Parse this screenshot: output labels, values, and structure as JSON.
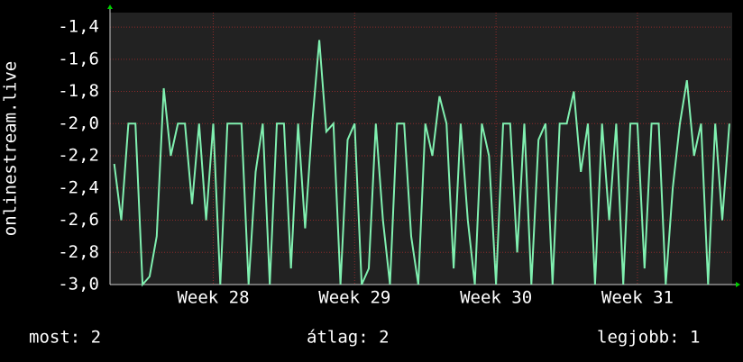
{
  "chart_data": {
    "type": "line",
    "y_label": "onlinestream.live",
    "xlim": [
      27.27,
      31.67
    ],
    "xticks": [
      {
        "value": 28,
        "label": "Week 28"
      },
      {
        "value": 29,
        "label": "Week 29"
      },
      {
        "value": 30,
        "label": "Week 30"
      },
      {
        "value": 31,
        "label": "Week 31"
      }
    ],
    "ylim": [
      -3.0,
      -1.31
    ],
    "yticks": [
      {
        "value": -3.0,
        "label": "-3,0"
      },
      {
        "value": -2.8,
        "label": "-2,8"
      },
      {
        "value": -2.6,
        "label": "-2,6"
      },
      {
        "value": -2.4,
        "label": "-2,4"
      },
      {
        "value": -2.2,
        "label": "-2,2"
      },
      {
        "value": -2.0,
        "label": "-2,0"
      },
      {
        "value": -1.8,
        "label": "-1,8"
      },
      {
        "value": -1.6,
        "label": "-1,6"
      },
      {
        "value": -1.4,
        "label": "-1,4"
      }
    ],
    "grid": true,
    "series": [
      {
        "color": "#80f0b0",
        "x": [
          27.3,
          27.35,
          27.4,
          27.45,
          27.5,
          27.55,
          27.6,
          27.65,
          27.7,
          27.75,
          27.8,
          27.85,
          27.9,
          27.95,
          28.0,
          28.05,
          28.1,
          28.15,
          28.2,
          28.25,
          28.3,
          28.35,
          28.4,
          28.45,
          28.5,
          28.55,
          28.6,
          28.65,
          28.7,
          28.75,
          28.8,
          28.85,
          28.9,
          28.95,
          29.0,
          29.05,
          29.1,
          29.15,
          29.2,
          29.25,
          29.3,
          29.35,
          29.4,
          29.45,
          29.5,
          29.55,
          29.6,
          29.65,
          29.7,
          29.75,
          29.8,
          29.85,
          29.9,
          29.95,
          30.0,
          30.05,
          30.1,
          30.15,
          30.2,
          30.25,
          30.3,
          30.35,
          30.4,
          30.45,
          30.5,
          30.55,
          30.6,
          30.65,
          30.7,
          30.75,
          30.8,
          30.85,
          30.9,
          30.95,
          31.0,
          31.05,
          31.1,
          31.15,
          31.2,
          31.25,
          31.3,
          31.35,
          31.4,
          31.45,
          31.5,
          31.55,
          31.6,
          31.65
        ],
        "values": [
          -2.25,
          -2.6,
          -2.0,
          -2.0,
          -3.0,
          -2.95,
          -2.7,
          -1.78,
          -2.2,
          -2.0,
          -2.0,
          -2.5,
          -2.0,
          -2.6,
          -2.0,
          -3.0,
          -2.0,
          -2.0,
          -2.0,
          -3.0,
          -2.3,
          -2.0,
          -3.0,
          -2.0,
          -2.0,
          -2.9,
          -2.0,
          -2.65,
          -2.0,
          -1.48,
          -2.05,
          -2.0,
          -3.0,
          -2.1,
          -2.0,
          -3.0,
          -2.9,
          -2.0,
          -2.6,
          -3.0,
          -2.0,
          -2.0,
          -2.7,
          -3.0,
          -2.0,
          -2.2,
          -1.83,
          -2.0,
          -2.9,
          -2.0,
          -2.6,
          -3.0,
          -2.0,
          -2.2,
          -3.0,
          -2.0,
          -2.0,
          -2.8,
          -2.0,
          -3.0,
          -2.1,
          -2.0,
          -3.0,
          -2.0,
          -2.0,
          -1.8,
          -2.3,
          -2.0,
          -3.0,
          -2.0,
          -2.6,
          -2.0,
          -3.0,
          -2.0,
          -2.0,
          -2.9,
          -2.0,
          -2.0,
          -3.0,
          -2.4,
          -2.0,
          -1.73,
          -2.2,
          -2.0,
          -3.0,
          -2.0,
          -2.6,
          -2.0
        ]
      }
    ],
    "footer": [
      "most: 2",
      "átlag: 2",
      "legjobb: 1"
    ]
  }
}
